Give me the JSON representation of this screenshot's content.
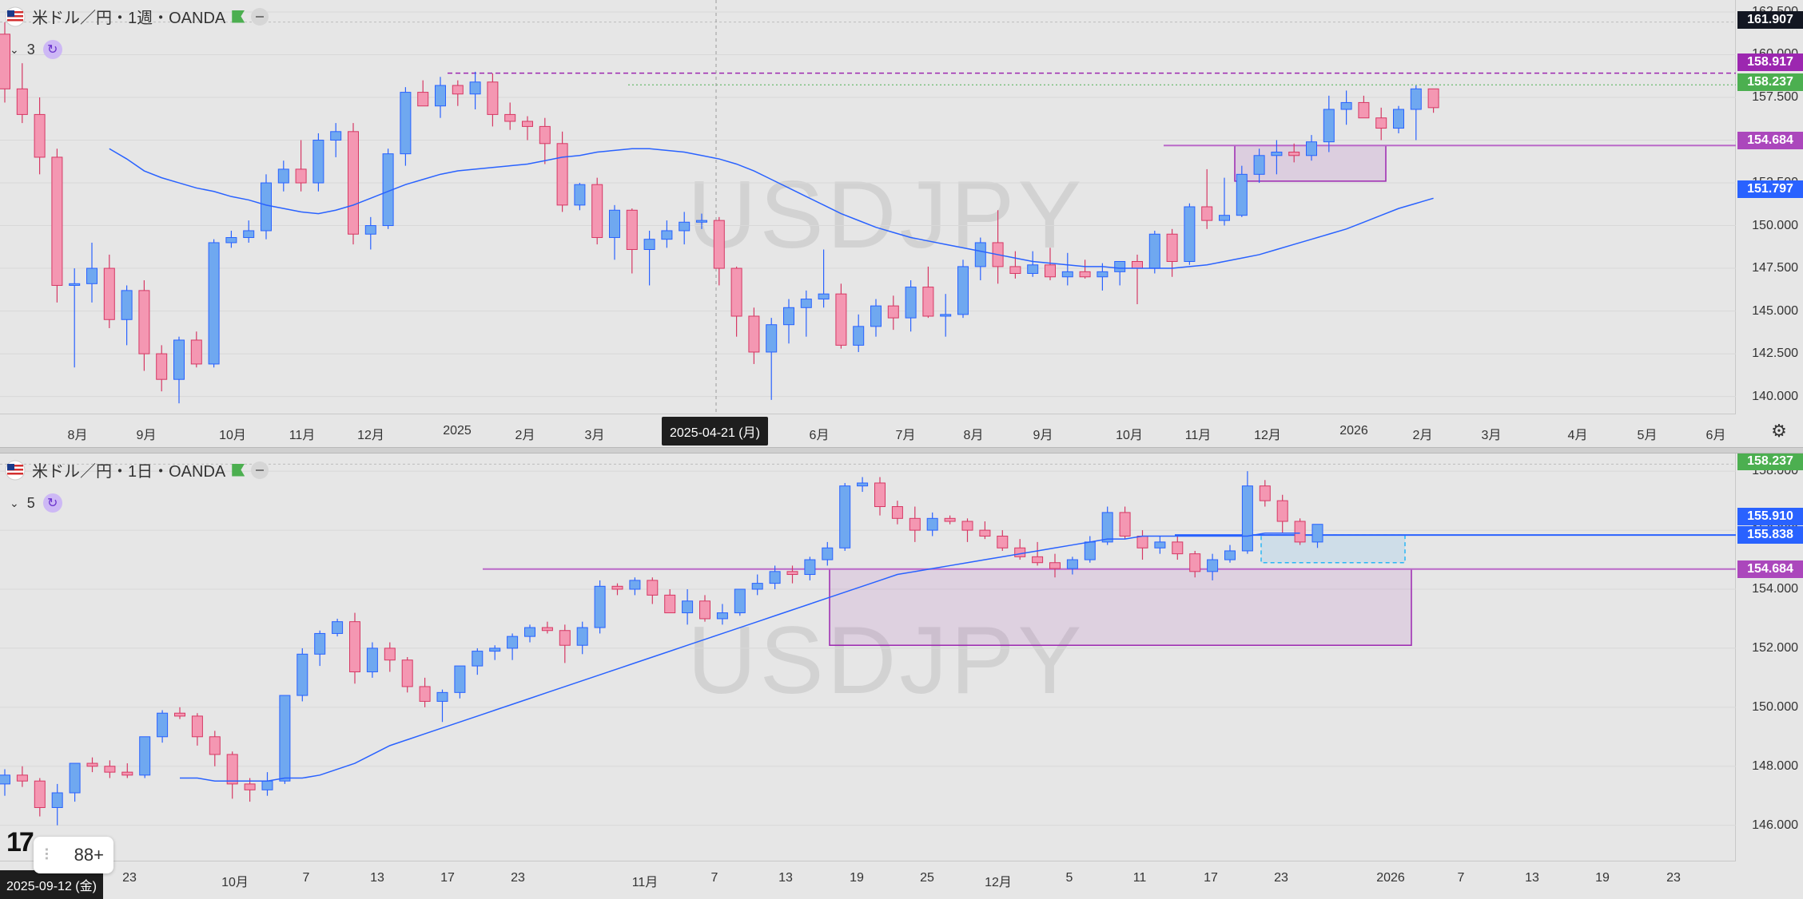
{
  "top_pane": {
    "symbol_title": "米ドル／円・1週・OANDA",
    "indicator_count": "3",
    "watermark": "USDJPY",
    "y_ticks": [
      "162.500",
      "160.000",
      "157.500",
      "155.000",
      "152.500",
      "150.000",
      "147.500",
      "145.000",
      "142.500",
      "140.000"
    ],
    "x_ticks": [
      "8月",
      "9月",
      "10月",
      "11月",
      "12月",
      "2025",
      "2月",
      "3月",
      "6月",
      "7月",
      "8月",
      "9月",
      "10月",
      "11月",
      "12月",
      "2026",
      "2月",
      "3月",
      "4月",
      "5月",
      "6月"
    ],
    "crosshair_date": "2025-04-21 (月)",
    "badges": [
      {
        "label": "161.907",
        "color": "#131722"
      },
      {
        "label": "158.917",
        "color": "#9c27b0"
      },
      {
        "label": "158.237",
        "color": "#4caf50"
      },
      {
        "label": "154.684",
        "color": "#ab47bc"
      },
      {
        "label": "151.797",
        "color": "#2962ff"
      }
    ],
    "chart_data": {
      "type": "candlestick",
      "timeframe": "weekly",
      "ylim": [
        139,
        163.2
      ],
      "candles": [
        [
          161.2,
          161.9,
          157.2,
          158.0
        ],
        [
          158.0,
          159.5,
          156.0,
          156.5
        ],
        [
          156.5,
          157.5,
          153.0,
          154.0
        ],
        [
          154.0,
          154.5,
          145.5,
          146.5
        ],
        [
          146.5,
          147.5,
          141.7,
          146.6
        ],
        [
          146.6,
          149.0,
          145.5,
          147.5
        ],
        [
          147.5,
          148.3,
          144.0,
          144.5
        ],
        [
          144.5,
          146.5,
          143.0,
          146.2
        ],
        [
          146.2,
          146.8,
          141.5,
          142.5
        ],
        [
          142.5,
          143.0,
          140.3,
          141.0
        ],
        [
          141.0,
          143.5,
          139.6,
          143.3
        ],
        [
          143.3,
          143.8,
          141.7,
          141.9
        ],
        [
          141.9,
          149.2,
          141.7,
          149.0
        ],
        [
          149.0,
          149.7,
          148.7,
          149.3
        ],
        [
          149.3,
          150.3,
          149.0,
          149.7
        ],
        [
          149.7,
          153.0,
          149.2,
          152.5
        ],
        [
          152.5,
          153.8,
          152.0,
          153.3
        ],
        [
          153.3,
          155.0,
          152.0,
          152.5
        ],
        [
          152.5,
          155.4,
          152.0,
          155.0
        ],
        [
          155.0,
          156.0,
          154.0,
          155.5
        ],
        [
          155.5,
          156.0,
          148.9,
          149.5
        ],
        [
          149.5,
          150.5,
          148.6,
          150.0
        ],
        [
          150.0,
          154.5,
          149.8,
          154.2
        ],
        [
          154.2,
          158.1,
          153.5,
          157.8
        ],
        [
          157.8,
          158.5,
          157.0,
          157.0
        ],
        [
          157.0,
          158.7,
          156.3,
          158.2
        ],
        [
          158.2,
          158.5,
          157.0,
          157.7
        ],
        [
          157.7,
          159.0,
          156.8,
          158.4
        ],
        [
          158.4,
          158.9,
          155.8,
          156.5
        ],
        [
          156.5,
          157.2,
          155.6,
          156.1
        ],
        [
          156.1,
          156.4,
          155.0,
          155.8
        ],
        [
          155.8,
          156.3,
          153.6,
          154.8
        ],
        [
          154.8,
          155.5,
          150.8,
          151.2
        ],
        [
          151.2,
          152.5,
          150.9,
          152.4
        ],
        [
          152.4,
          152.8,
          148.9,
          149.3
        ],
        [
          149.3,
          151.2,
          148.0,
          150.9
        ],
        [
          150.9,
          151.0,
          147.2,
          148.6
        ],
        [
          148.6,
          149.7,
          146.5,
          149.2
        ],
        [
          149.2,
          150.3,
          148.7,
          149.7
        ],
        [
          149.7,
          150.8,
          148.9,
          150.2
        ],
        [
          150.2,
          150.7,
          149.8,
          150.3
        ],
        [
          150.3,
          150.5,
          146.5,
          147.5
        ],
        [
          147.5,
          147.6,
          143.5,
          144.7
        ],
        [
          144.7,
          145.2,
          141.9,
          142.6
        ],
        [
          142.6,
          144.6,
          139.8,
          144.2
        ],
        [
          144.2,
          145.7,
          143.1,
          145.2
        ],
        [
          145.2,
          146.2,
          143.5,
          145.7
        ],
        [
          145.7,
          148.6,
          145.2,
          146.0
        ],
        [
          146.0,
          146.6,
          142.8,
          143.0
        ],
        [
          143.0,
          144.8,
          142.6,
          144.1
        ],
        [
          144.1,
          145.7,
          143.5,
          145.3
        ],
        [
          145.3,
          145.9,
          143.9,
          144.6
        ],
        [
          144.6,
          146.8,
          143.8,
          146.4
        ],
        [
          146.4,
          147.6,
          144.6,
          144.7
        ],
        [
          144.7,
          146.0,
          143.5,
          144.8
        ],
        [
          144.8,
          148.0,
          144.6,
          147.6
        ],
        [
          147.6,
          149.3,
          146.8,
          149.0
        ],
        [
          149.0,
          150.9,
          146.6,
          147.6
        ],
        [
          147.6,
          148.5,
          146.9,
          147.2
        ],
        [
          147.2,
          148.5,
          147.0,
          147.7
        ],
        [
          147.7,
          148.7,
          146.8,
          147.0
        ],
        [
          147.0,
          148.4,
          146.5,
          147.3
        ],
        [
          147.3,
          148.0,
          146.9,
          147.0
        ],
        [
          147.0,
          147.8,
          146.2,
          147.3
        ],
        [
          147.3,
          147.9,
          146.5,
          147.9
        ],
        [
          147.9,
          148.3,
          145.4,
          147.5
        ],
        [
          147.5,
          149.7,
          147.2,
          149.5
        ],
        [
          149.5,
          149.8,
          147.0,
          147.9
        ],
        [
          147.9,
          151.3,
          147.7,
          151.1
        ],
        [
          151.1,
          153.3,
          149.8,
          150.3
        ],
        [
          150.3,
          152.8,
          150.0,
          150.6
        ],
        [
          150.6,
          153.5,
          150.5,
          153.0
        ],
        [
          153.0,
          154.5,
          152.5,
          154.1
        ],
        [
          154.1,
          155.0,
          153.0,
          154.3
        ],
        [
          154.3,
          154.8,
          153.7,
          154.1
        ],
        [
          154.1,
          155.3,
          153.8,
          154.9
        ],
        [
          154.9,
          157.6,
          154.3,
          156.8
        ],
        [
          156.8,
          157.9,
          155.9,
          157.2
        ],
        [
          157.2,
          157.6,
          156.3,
          156.3
        ],
        [
          156.3,
          156.9,
          155.0,
          155.7
        ],
        [
          155.7,
          157.0,
          155.4,
          156.8
        ],
        [
          156.8,
          158.2,
          155.0,
          158.0
        ],
        [
          158.0,
          158.0,
          156.6,
          156.9
        ]
      ],
      "ma_values": [
        154.5,
        153.9,
        153.2,
        152.8,
        152.5,
        152.2,
        152.0,
        151.7,
        151.5,
        151.2,
        151.0,
        150.8,
        150.7,
        150.9,
        151.2,
        151.6,
        152.0,
        152.4,
        152.7,
        153.0,
        153.2,
        153.3,
        153.4,
        153.5,
        153.6,
        153.8,
        154.0,
        154.1,
        154.3,
        154.4,
        154.5,
        154.5,
        154.4,
        154.3,
        154.1,
        153.9,
        153.6,
        153.2,
        152.7,
        152.2,
        151.7,
        151.2,
        150.7,
        150.3,
        149.9,
        149.6,
        149.3,
        149.1,
        148.9,
        148.7,
        148.5,
        148.3,
        148.1,
        147.9,
        147.8,
        147.7,
        147.6,
        147.6,
        147.5,
        147.5,
        147.5,
        147.5,
        147.6,
        147.7,
        147.9,
        148.1,
        148.3,
        148.6,
        148.9,
        149.2,
        149.5,
        149.8,
        150.2,
        150.6,
        151.0,
        151.3,
        151.6
      ]
    }
  },
  "bottom_pane": {
    "symbol_title": "米ドル／円・1日・OANDA",
    "indicator_count": "5",
    "watermark": "USDJPY",
    "y_ticks": [
      "158.000",
      "156.000",
      "154.000",
      "152.000",
      "150.000",
      "148.000",
      "146.000"
    ],
    "x_ticks": [
      "23",
      "10月",
      "7",
      "13",
      "17",
      "23",
      "11月",
      "7",
      "13",
      "19",
      "25",
      "12月",
      "5",
      "11",
      "17",
      "23",
      "2026",
      "7",
      "13",
      "19",
      "23"
    ],
    "crosshair_date": "2025-09-12 (金)",
    "badges": [
      {
        "label": "158.237",
        "color": "#4caf50"
      },
      {
        "label": "155.910",
        "color": "#2962ff"
      },
      {
        "label": "155.838",
        "color": "#2962ff"
      },
      {
        "label": "154.684",
        "color": "#ab47bc"
      }
    ],
    "chart_data": {
      "type": "candlestick",
      "timeframe": "daily",
      "ylim": [
        144.8,
        158.6
      ],
      "candles": [
        [
          147.4,
          147.9,
          147.0,
          147.7
        ],
        [
          147.7,
          148.0,
          147.3,
          147.5
        ],
        [
          147.5,
          147.6,
          146.3,
          146.6
        ],
        [
          146.6,
          147.4,
          146.0,
          147.1
        ],
        [
          147.1,
          148.1,
          146.8,
          148.1
        ],
        [
          148.1,
          148.3,
          147.8,
          148.0
        ],
        [
          148.0,
          148.2,
          147.6,
          147.8
        ],
        [
          147.8,
          148.1,
          147.6,
          147.7
        ],
        [
          147.7,
          149.0,
          147.6,
          149.0
        ],
        [
          149.0,
          149.9,
          148.8,
          149.8
        ],
        [
          149.8,
          150.0,
          149.6,
          149.7
        ],
        [
          149.7,
          149.8,
          148.7,
          149.0
        ],
        [
          149.0,
          149.2,
          148.0,
          148.4
        ],
        [
          148.4,
          148.5,
          146.9,
          147.4
        ],
        [
          147.4,
          147.6,
          146.8,
          147.2
        ],
        [
          147.2,
          147.8,
          147.0,
          147.5
        ],
        [
          147.5,
          150.4,
          147.4,
          150.4
        ],
        [
          150.4,
          152.0,
          150.2,
          151.8
        ],
        [
          151.8,
          152.6,
          151.4,
          152.5
        ],
        [
          152.5,
          153.0,
          152.4,
          152.9
        ],
        [
          152.9,
          153.2,
          150.8,
          151.2
        ],
        [
          151.2,
          152.2,
          151.0,
          152.0
        ],
        [
          152.0,
          152.2,
          151.2,
          151.6
        ],
        [
          151.6,
          151.7,
          150.5,
          150.7
        ],
        [
          150.7,
          151.0,
          150.0,
          150.2
        ],
        [
          150.2,
          150.6,
          149.5,
          150.5
        ],
        [
          150.5,
          151.4,
          150.3,
          151.4
        ],
        [
          151.4,
          152.0,
          151.1,
          151.9
        ],
        [
          151.9,
          152.1,
          151.6,
          152.0
        ],
        [
          152.0,
          152.5,
          151.6,
          152.4
        ],
        [
          152.4,
          152.8,
          152.2,
          152.7
        ],
        [
          152.7,
          152.9,
          152.5,
          152.6
        ],
        [
          152.6,
          152.8,
          151.5,
          152.1
        ],
        [
          152.1,
          152.9,
          151.8,
          152.7
        ],
        [
          152.7,
          154.3,
          152.5,
          154.1
        ],
        [
          154.1,
          154.2,
          153.8,
          154.0
        ],
        [
          154.0,
          154.4,
          153.8,
          154.3
        ],
        [
          154.3,
          154.4,
          153.5,
          153.8
        ],
        [
          153.8,
          154.0,
          153.2,
          153.2
        ],
        [
          153.2,
          154.0,
          152.8,
          153.6
        ],
        [
          153.6,
          153.8,
          152.9,
          153.0
        ],
        [
          153.0,
          153.5,
          152.8,
          153.2
        ],
        [
          153.2,
          154.0,
          153.1,
          154.0
        ],
        [
          154.0,
          154.5,
          153.8,
          154.2
        ],
        [
          154.2,
          154.8,
          154.0,
          154.6
        ],
        [
          154.6,
          154.8,
          154.2,
          154.5
        ],
        [
          154.5,
          155.1,
          154.3,
          155.0
        ],
        [
          155.0,
          155.6,
          154.8,
          155.4
        ],
        [
          155.4,
          157.6,
          155.3,
          157.5
        ],
        [
          157.5,
          157.8,
          157.3,
          157.6
        ],
        [
          157.6,
          157.8,
          156.5,
          156.8
        ],
        [
          156.8,
          157.0,
          156.2,
          156.4
        ],
        [
          156.4,
          156.8,
          155.6,
          156.0
        ],
        [
          156.0,
          156.6,
          155.8,
          156.4
        ],
        [
          156.4,
          156.5,
          156.2,
          156.3
        ],
        [
          156.3,
          156.4,
          155.6,
          156.0
        ],
        [
          156.0,
          156.3,
          155.7,
          155.8
        ],
        [
          155.8,
          156.0,
          155.3,
          155.4
        ],
        [
          155.4,
          155.7,
          155.0,
          155.1
        ],
        [
          155.1,
          155.6,
          154.8,
          154.9
        ],
        [
          154.9,
          155.2,
          154.4,
          154.7
        ],
        [
          154.7,
          155.1,
          154.5,
          155.0
        ],
        [
          155.0,
          155.8,
          154.9,
          155.6
        ],
        [
          155.6,
          156.8,
          155.5,
          156.6
        ],
        [
          156.6,
          156.8,
          155.7,
          155.8
        ],
        [
          155.8,
          156.0,
          155.0,
          155.4
        ],
        [
          155.4,
          155.8,
          155.2,
          155.6
        ],
        [
          155.6,
          155.8,
          155.0,
          155.2
        ],
        [
          155.2,
          155.3,
          154.4,
          154.6
        ],
        [
          154.6,
          155.2,
          154.3,
          155.0
        ],
        [
          155.0,
          155.5,
          154.9,
          155.3
        ],
        [
          155.3,
          158.0,
          155.2,
          157.5
        ],
        [
          157.5,
          157.7,
          156.8,
          157.0
        ],
        [
          157.0,
          157.2,
          155.9,
          156.3
        ],
        [
          156.3,
          156.4,
          155.5,
          155.6
        ],
        [
          155.6,
          156.2,
          155.4,
          156.2
        ]
      ],
      "ma_values": [
        147.6,
        147.6,
        147.5,
        147.5,
        147.5,
        147.5,
        147.6,
        147.6,
        147.7,
        147.9,
        148.1,
        148.4,
        148.7,
        148.9,
        149.1,
        149.3,
        149.5,
        149.7,
        149.9,
        150.1,
        150.3,
        150.5,
        150.7,
        150.9,
        151.1,
        151.3,
        151.5,
        151.7,
        151.9,
        152.1,
        152.3,
        152.5,
        152.7,
        152.9,
        153.1,
        153.3,
        153.5,
        153.7,
        153.9,
        154.1,
        154.3,
        154.5,
        154.6,
        154.7,
        154.8,
        154.9,
        155.0,
        155.1,
        155.2,
        155.3,
        155.4,
        155.5,
        155.6,
        155.7,
        155.7,
        155.8,
        155.8,
        155.8,
        155.8,
        155.8,
        155.8,
        155.8,
        155.9,
        155.9,
        155.9
      ]
    }
  },
  "widget": {
    "label": "88+"
  },
  "logo": {
    "text": "17"
  }
}
